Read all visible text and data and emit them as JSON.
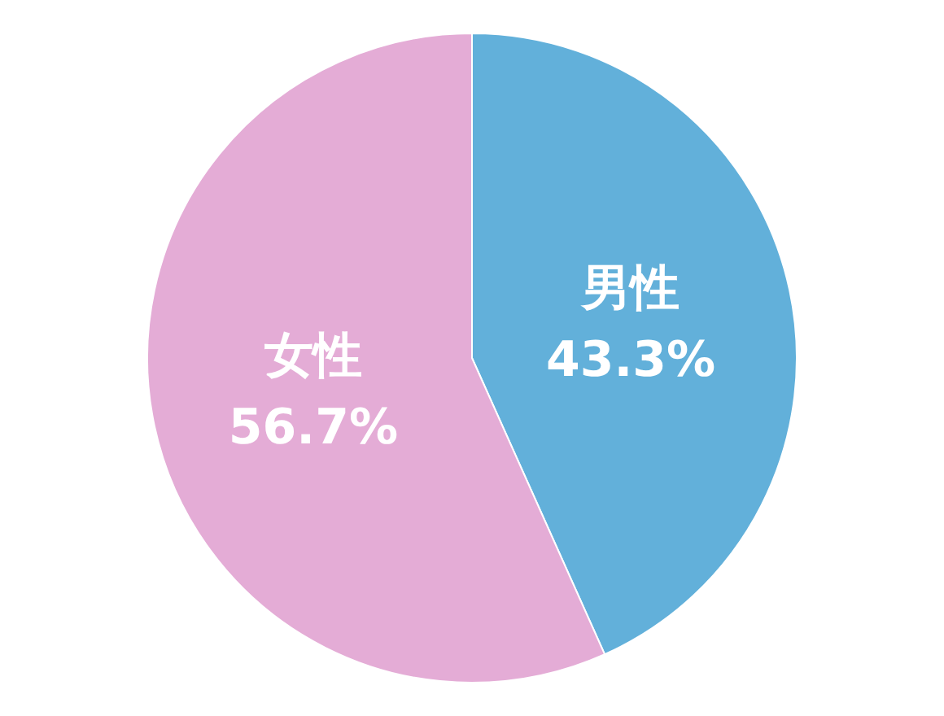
{
  "chart_data": {
    "type": "pie",
    "categories": [
      "男性",
      "女性"
    ],
    "values": [
      43.3,
      56.7
    ],
    "colors": [
      "#62b0da",
      "#e4acd6"
    ],
    "value_labels": [
      "43.3%",
      "56.7%"
    ],
    "legend": false
  }
}
